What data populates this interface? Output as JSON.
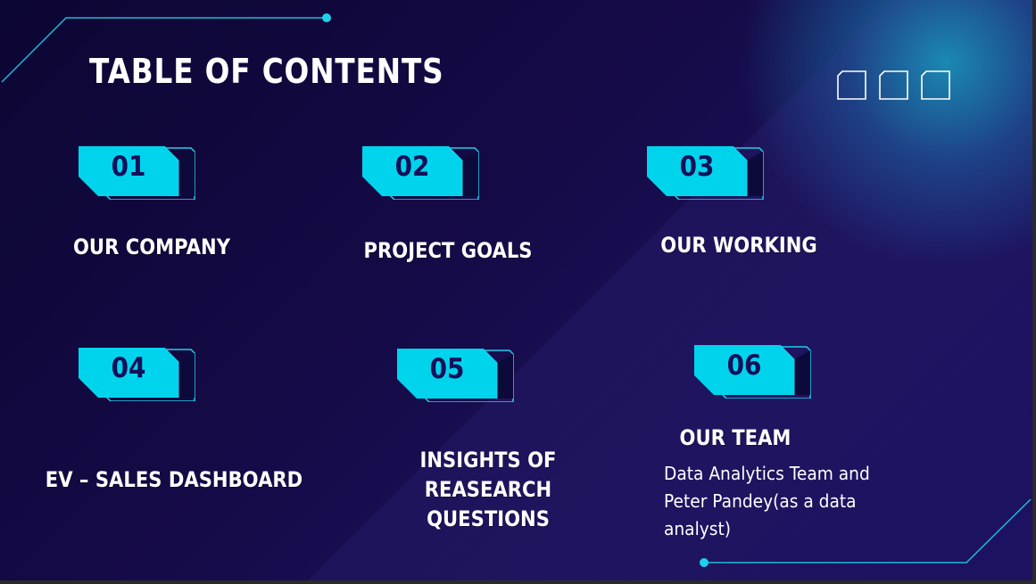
{
  "slide": {
    "title": "TABLE OF CONTENTS",
    "items": [
      {
        "number": "01",
        "label": "OUR COMPANY"
      },
      {
        "number": "02",
        "label": "PROJECT GOALS"
      },
      {
        "number": "03",
        "label": "OUR WORKING"
      },
      {
        "number": "04",
        "label": "EV – SALES DASHBOARD"
      },
      {
        "number": "05",
        "label": "INSIGHTS OF REASEARCH QUESTIONS"
      },
      {
        "number": "06",
        "label": "OUR TEAM",
        "description": "Data Analytics Team and Peter Pandey(as a data analyst)"
      }
    ]
  },
  "colors": {
    "accent": "#00d4ec",
    "badge_text": "#14105a",
    "background": "#140a45"
  },
  "icons": [
    "window-square-icon",
    "window-square-icon",
    "window-square-icon"
  ]
}
